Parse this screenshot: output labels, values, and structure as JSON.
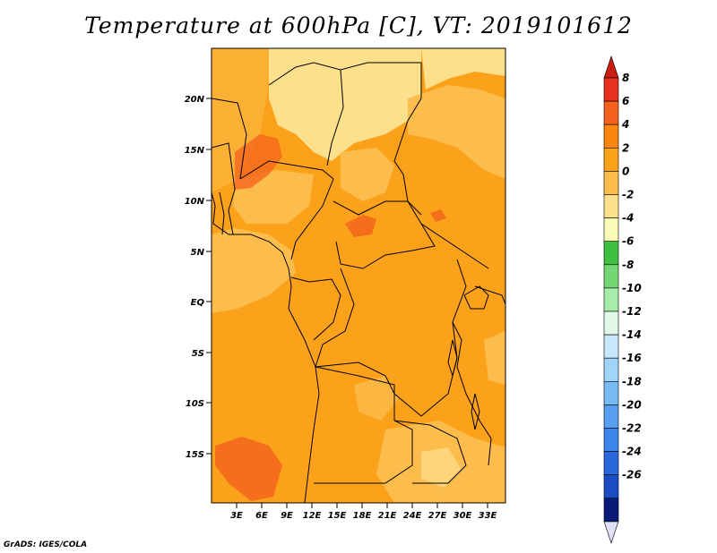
{
  "title": "Temperature at 600hPa [C], VT: 2019101612",
  "credit": "GrADS: IGES/COLA",
  "lat_ticks": [
    "20N",
    "15N",
    "10N",
    "5N",
    "EQ",
    "5S",
    "10S",
    "15S"
  ],
  "lon_ticks": [
    "3E",
    "6E",
    "9E",
    "12E",
    "15E",
    "18E",
    "21E",
    "24E",
    "27E",
    "30E",
    "33E"
  ],
  "colorbar": {
    "labels": [
      "8",
      "6",
      "4",
      "2",
      "0",
      "-2",
      "-4",
      "-6",
      "-8",
      "-10",
      "-12",
      "-14",
      "-16",
      "-18",
      "-20",
      "-22",
      "-24",
      "-26"
    ],
    "colors": [
      "#e6311e",
      "#f4611c",
      "#f9860f",
      "#fba21a",
      "#fdbd4d",
      "#fde08c",
      "#fbfbb8",
      "#3fbf3f",
      "#73d873",
      "#a8ecaa",
      "#e0f8e6",
      "#c6e8fa",
      "#a0d4f8",
      "#78baf2",
      "#559ef0",
      "#3d84ed",
      "#2867dc",
      "#1a4cc4",
      "#0a1a78"
    ],
    "top_color": "#cc1d14",
    "bottom_color": "#e0e0f4"
  },
  "legend_map": {
    "color_light_yellow": "#fde08c",
    "color_light_orange": "#fdbd4d",
    "color_orange": "#fba21a",
    "color_dark_orange": "#f9860f",
    "color_red_orange": "#f4611c"
  }
}
